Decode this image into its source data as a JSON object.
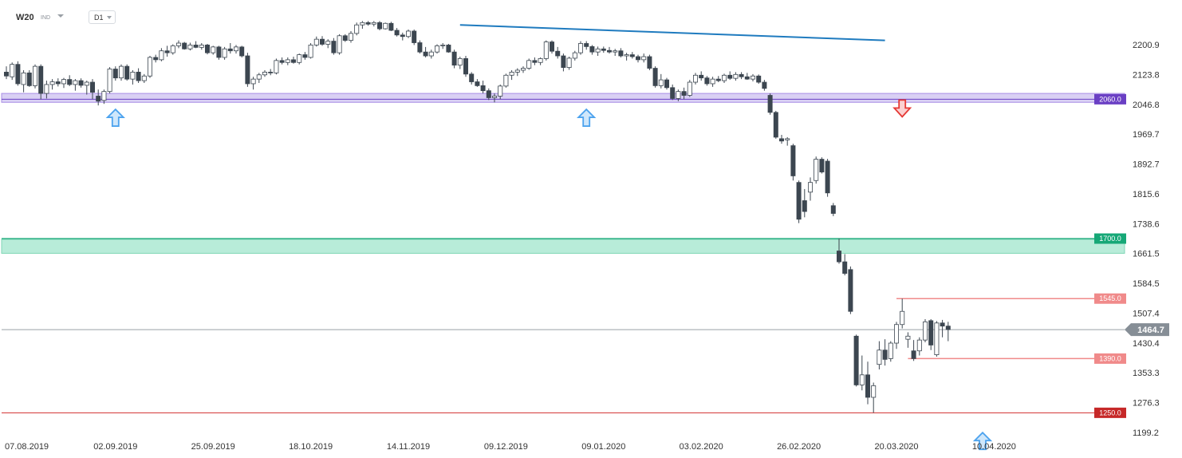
{
  "header": {
    "symbol": "W20",
    "instrument_class": "IND",
    "timeframe": "D1"
  },
  "colors": {
    "bull_body": "#ffffff",
    "bear_body": "#3c4650",
    "support_zone": "#ccc0f0",
    "support_tag": "#6a3fc4",
    "green_zone": "#b8ecd9",
    "green_tag": "#16a877",
    "level_line": "#f08a8a",
    "level_tag": "#f08a8a",
    "low_line": "#d32f2f",
    "low_tag": "#c62828",
    "trendline": "#1f7bbf",
    "current_tag": "#868e96",
    "up_arrow": "#4da3ee",
    "down_arrow": "#e53935"
  },
  "chart_data": {
    "type": "candlestick",
    "title": "",
    "ylim": [
      1170,
      2260
    ],
    "y_ticks": [
      "2200.9",
      "2123.8",
      "2046.8",
      "1969.7",
      "1892.7",
      "1815.6",
      "1738.6",
      "1661.5",
      "1584.5",
      "1507.4",
      "1430.4",
      "1353.3",
      "1276.3",
      "1199.2"
    ],
    "x_labels": [
      {
        "index": 0,
        "label": "07.08.2019"
      },
      {
        "index": 19,
        "label": "02.09.2019"
      },
      {
        "index": 36,
        "label": "25.09.2019"
      },
      {
        "index": 53,
        "label": "18.10.2019"
      },
      {
        "index": 70,
        "label": "14.11.2019"
      },
      {
        "index": 87,
        "label": "09.12.2019"
      },
      {
        "index": 104,
        "label": "09.01.2020"
      },
      {
        "index": 121,
        "label": "03.02.2020"
      },
      {
        "index": 138,
        "label": "26.02.2020"
      },
      {
        "index": 155,
        "label": "20.03.2020"
      },
      {
        "index": 172,
        "label": "10.04.2020"
      }
    ],
    "candles": [
      [
        2130,
        2145,
        2112,
        2120
      ],
      [
        2118,
        2155,
        2110,
        2150
      ],
      [
        2150,
        2158,
        2095,
        2100
      ],
      [
        2098,
        2135,
        2078,
        2128
      ],
      [
        2128,
        2135,
        2092,
        2095
      ],
      [
        2095,
        2150,
        2088,
        2145
      ],
      [
        2145,
        2150,
        2060,
        2075
      ],
      [
        2075,
        2108,
        2062,
        2098
      ],
      [
        2098,
        2112,
        2085,
        2105
      ],
      [
        2105,
        2114,
        2093,
        2100
      ],
      [
        2100,
        2115,
        2089,
        2111
      ],
      [
        2111,
        2122,
        2094,
        2098
      ],
      [
        2098,
        2112,
        2082,
        2108
      ],
      [
        2108,
        2114,
        2090,
        2096
      ],
      [
        2096,
        2108,
        2072,
        2104
      ],
      [
        2104,
        2112,
        2060,
        2078
      ],
      [
        2068,
        2085,
        2044,
        2055
      ],
      [
        2057,
        2085,
        2048,
        2080
      ],
      [
        2080,
        2143,
        2075,
        2138
      ],
      [
        2138,
        2145,
        2108,
        2115
      ],
      [
        2115,
        2150,
        2108,
        2145
      ],
      [
        2145,
        2150,
        2108,
        2112
      ],
      [
        2112,
        2135,
        2098,
        2130
      ],
      [
        2130,
        2140,
        2102,
        2108
      ],
      [
        2108,
        2125,
        2102,
        2120
      ],
      [
        2120,
        2172,
        2115,
        2168
      ],
      [
        2168,
        2175,
        2155,
        2162
      ],
      [
        2162,
        2192,
        2158,
        2185
      ],
      [
        2185,
        2198,
        2170,
        2180
      ],
      [
        2180,
        2202,
        2175,
        2198
      ],
      [
        2198,
        2212,
        2192,
        2205
      ],
      [
        2205,
        2208,
        2188,
        2190
      ],
      [
        2190,
        2206,
        2186,
        2200
      ],
      [
        2200,
        2210,
        2192,
        2194
      ],
      [
        2194,
        2205,
        2188,
        2200
      ],
      [
        2200,
        2203,
        2176,
        2180
      ],
      [
        2180,
        2198,
        2175,
        2195
      ],
      [
        2195,
        2198,
        2162,
        2168
      ],
      [
        2168,
        2195,
        2162,
        2190
      ],
      [
        2190,
        2205,
        2178,
        2185
      ],
      [
        2185,
        2200,
        2178,
        2195
      ],
      [
        2195,
        2198,
        2168,
        2172
      ],
      [
        2172,
        2180,
        2092,
        2100
      ],
      [
        2100,
        2118,
        2085,
        2112
      ],
      [
        2112,
        2128,
        2102,
        2123
      ],
      [
        2123,
        2135,
        2118,
        2130
      ],
      [
        2130,
        2138,
        2122,
        2128
      ],
      [
        2128,
        2165,
        2124,
        2160
      ],
      [
        2160,
        2168,
        2150,
        2155
      ],
      [
        2155,
        2168,
        2148,
        2162
      ],
      [
        2162,
        2170,
        2152,
        2155
      ],
      [
        2155,
        2178,
        2150,
        2175
      ],
      [
        2175,
        2182,
        2162,
        2168
      ],
      [
        2168,
        2205,
        2165,
        2200
      ],
      [
        2200,
        2222,
        2196,
        2215
      ],
      [
        2215,
        2223,
        2198,
        2202
      ],
      [
        2202,
        2215,
        2192,
        2210
      ],
      [
        2210,
        2218,
        2175,
        2180
      ],
      [
        2180,
        2228,
        2175,
        2224
      ],
      [
        2224,
        2228,
        2208,
        2212
      ],
      [
        2212,
        2236,
        2206,
        2230
      ],
      [
        2230,
        2258,
        2225,
        2252
      ],
      [
        2252,
        2262,
        2242,
        2258
      ],
      [
        2258,
        2262,
        2250,
        2254
      ],
      [
        2254,
        2262,
        2248,
        2258
      ],
      [
        2258,
        2262,
        2238,
        2242
      ],
      [
        2242,
        2258,
        2240,
        2256
      ],
      [
        2256,
        2260,
        2236,
        2238
      ],
      [
        2238,
        2244,
        2222,
        2226
      ],
      [
        2226,
        2232,
        2212,
        2222
      ],
      [
        2222,
        2240,
        2218,
        2236
      ],
      [
        2236,
        2240,
        2200,
        2206
      ],
      [
        2206,
        2212,
        2178,
        2182
      ],
      [
        2182,
        2195,
        2168,
        2172
      ],
      [
        2172,
        2188,
        2165,
        2182
      ],
      [
        2182,
        2202,
        2178,
        2198
      ],
      [
        2198,
        2205,
        2190,
        2200
      ],
      [
        2200,
        2203,
        2180,
        2182
      ],
      [
        2182,
        2188,
        2140,
        2148
      ],
      [
        2148,
        2170,
        2138,
        2165
      ],
      [
        2165,
        2172,
        2118,
        2125
      ],
      [
        2125,
        2130,
        2098,
        2105
      ],
      [
        2105,
        2112,
        2092,
        2095
      ],
      [
        2095,
        2108,
        2075,
        2082
      ],
      [
        2082,
        2088,
        2058,
        2064
      ],
      [
        2064,
        2075,
        2052,
        2068
      ],
      [
        2068,
        2098,
        2060,
        2094
      ],
      [
        2094,
        2126,
        2090,
        2122
      ],
      [
        2122,
        2135,
        2110,
        2130
      ],
      [
        2130,
        2140,
        2120,
        2135
      ],
      [
        2135,
        2145,
        2128,
        2140
      ],
      [
        2140,
        2165,
        2136,
        2160
      ],
      [
        2160,
        2168,
        2148,
        2155
      ],
      [
        2155,
        2168,
        2148,
        2165
      ],
      [
        2165,
        2212,
        2160,
        2208
      ],
      [
        2208,
        2212,
        2178,
        2184
      ],
      [
        2184,
        2195,
        2165,
        2172
      ],
      [
        2172,
        2178,
        2132,
        2142
      ],
      [
        2142,
        2170,
        2136,
        2166
      ],
      [
        2166,
        2185,
        2160,
        2180
      ],
      [
        2180,
        2210,
        2175,
        2204
      ],
      [
        2204,
        2210,
        2188,
        2196
      ],
      [
        2196,
        2200,
        2175,
        2182
      ],
      [
        2182,
        2196,
        2172,
        2190
      ],
      [
        2190,
        2196,
        2180,
        2186
      ],
      [
        2186,
        2195,
        2178,
        2182
      ],
      [
        2182,
        2190,
        2172,
        2185
      ],
      [
        2185,
        2192,
        2168,
        2172
      ],
      [
        2172,
        2180,
        2160,
        2175
      ],
      [
        2175,
        2182,
        2165,
        2170
      ],
      [
        2170,
        2175,
        2155,
        2162
      ],
      [
        2162,
        2178,
        2155,
        2170
      ],
      [
        2170,
        2175,
        2135,
        2140
      ],
      [
        2140,
        2145,
        2090,
        2095
      ],
      [
        2095,
        2125,
        2088,
        2110
      ],
      [
        2110,
        2115,
        2085,
        2090
      ],
      [
        2090,
        2098,
        2058,
        2062
      ],
      [
        2062,
        2085,
        2055,
        2080
      ],
      [
        2080,
        2090,
        2060,
        2070
      ],
      [
        2070,
        2110,
        2066,
        2104
      ],
      [
        2104,
        2128,
        2098,
        2122
      ],
      [
        2122,
        2132,
        2108,
        2115
      ],
      [
        2115,
        2120,
        2095,
        2100
      ],
      [
        2100,
        2118,
        2092,
        2112
      ],
      [
        2112,
        2120,
        2104,
        2108
      ],
      [
        2108,
        2126,
        2102,
        2122
      ],
      [
        2122,
        2132,
        2110,
        2114
      ],
      [
        2114,
        2130,
        2108,
        2124
      ],
      [
        2124,
        2130,
        2112,
        2118
      ],
      [
        2118,
        2128,
        2110,
        2112
      ],
      [
        2112,
        2125,
        2106,
        2120
      ],
      [
        2120,
        2124,
        2100,
        2104
      ],
      [
        2104,
        2110,
        2082,
        2088
      ],
      [
        2070,
        2075,
        2020,
        2026
      ],
      [
        2026,
        2030,
        1958,
        1962
      ],
      [
        1958,
        1968,
        1945,
        1952
      ],
      [
        1955,
        1962,
        1940,
        1958
      ],
      [
        1940,
        1945,
        1850,
        1862
      ],
      [
        1845,
        1850,
        1740,
        1750
      ],
      [
        1798,
        1828,
        1755,
        1770
      ],
      [
        1820,
        1858,
        1798,
        1845
      ],
      [
        1850,
        1912,
        1842,
        1905
      ],
      [
        1905,
        1910,
        1868,
        1872
      ],
      [
        1900,
        1906,
        1808,
        1818
      ],
      [
        1785,
        1792,
        1758,
        1765
      ],
      [
        1668,
        1700,
        1635,
        1640
      ],
      [
        1640,
        1660,
        1605,
        1610
      ],
      [
        1620,
        1628,
        1505,
        1512
      ],
      [
        1448,
        1452,
        1318,
        1322
      ],
      [
        1322,
        1398,
        1308,
        1348
      ],
      [
        1348,
        1382,
        1272,
        1290
      ],
      [
        1290,
        1328,
        1250,
        1320
      ],
      [
        1375,
        1435,
        1362,
        1412
      ],
      [
        1412,
        1440,
        1372,
        1388
      ],
      [
        1390,
        1435,
        1382,
        1430
      ],
      [
        1430,
        1485,
        1415,
        1478
      ],
      [
        1478,
        1545,
        1468,
        1512
      ],
      [
        1440,
        1458,
        1418,
        1448
      ],
      [
        1410,
        1438,
        1384,
        1390
      ],
      [
        1410,
        1445,
        1398,
        1438
      ],
      [
        1438,
        1492,
        1432,
        1485
      ],
      [
        1488,
        1492,
        1412,
        1425
      ],
      [
        1400,
        1487,
        1395,
        1482
      ],
      [
        1482,
        1490,
        1445,
        1474
      ],
      [
        1474,
        1485,
        1435,
        1465
      ]
    ],
    "levels": [
      {
        "value": 2060.0,
        "label": "2060.0"
      },
      {
        "value": 1700.0,
        "label": "1700.0"
      },
      {
        "value": 1545.0,
        "label": "1545.0"
      },
      {
        "value": 1390.0,
        "label": "1390.0"
      },
      {
        "value": 1250.0,
        "label": "1250.0"
      }
    ],
    "current_price": {
      "value": 1464.7,
      "label": "1464.7"
    },
    "trendline": {
      "start": {
        "index": 79,
        "value": 2252
      },
      "end": {
        "index": 153,
        "value": 2212
      }
    },
    "annotations": [
      {
        "type": "up-arrow",
        "index": 19,
        "value": 2040
      },
      {
        "type": "up-arrow",
        "index": 101,
        "value": 2040
      },
      {
        "type": "down-arrow",
        "index": 156,
        "value": 2062
      },
      {
        "type": "up-arrow",
        "index": 170,
        "value": 1205
      }
    ]
  }
}
